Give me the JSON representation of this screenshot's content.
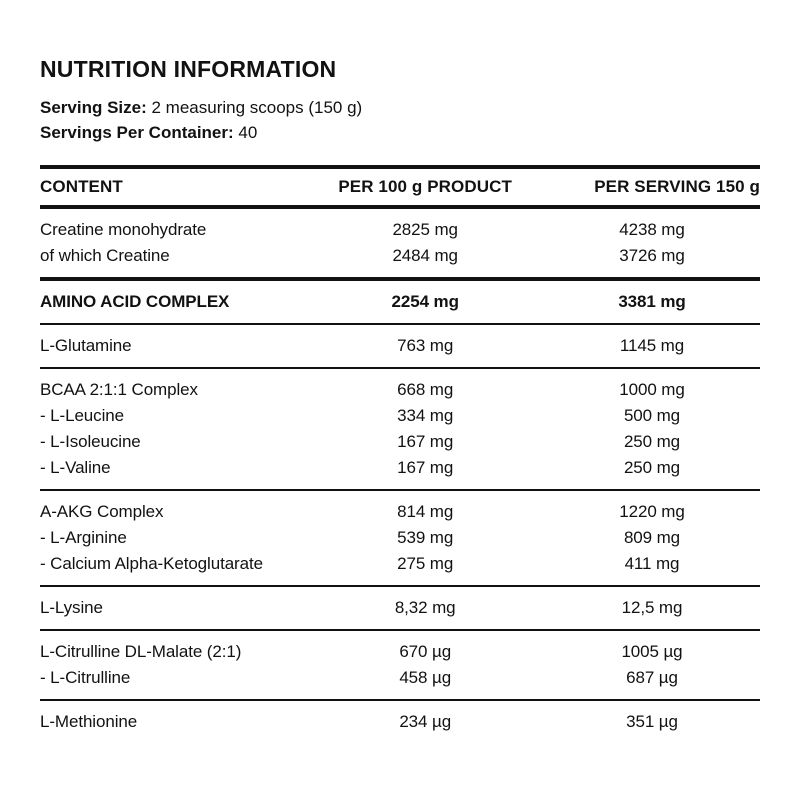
{
  "title": "NUTRITION INFORMATION",
  "serving": {
    "size_label": "Serving Size:",
    "size_value": " 2 measuring scoops (150 g)",
    "container_label": "Servings Per Container:",
    "container_value": " 40"
  },
  "table": {
    "headers": [
      "CONTENT",
      "PER 100 g PRODUCT",
      "PER SERVING 150 g"
    ],
    "groups": [
      {
        "divider_after": "thick",
        "rows": [
          [
            "Creatine monohydrate",
            "2825 mg",
            "4238 mg"
          ],
          [
            "of which Creatine",
            "2484 mg",
            "3726 mg"
          ]
        ]
      },
      {
        "bold": true,
        "divider_after": "thin",
        "rows": [
          [
            "AMINO ACID COMPLEX",
            "2254 mg",
            "3381 mg"
          ]
        ]
      },
      {
        "divider_after": "thin",
        "rows": [
          [
            "L-Glutamine",
            "763 mg",
            "1145 mg"
          ]
        ]
      },
      {
        "divider_after": "thin",
        "rows": [
          [
            "BCAA 2:1:1 Complex",
            "668 mg",
            "1000 mg"
          ],
          [
            "- L-Leucine",
            "334 mg",
            "500 mg"
          ],
          [
            "- L-Isoleucine",
            "167 mg",
            "250 mg"
          ],
          [
            "- L-Valine",
            "167 mg",
            "250 mg"
          ]
        ]
      },
      {
        "divider_after": "thin",
        "rows": [
          [
            "A-AKG Complex",
            "814 mg",
            "1220 mg"
          ],
          [
            "- L-Arginine",
            "539 mg",
            "809 mg"
          ],
          [
            "- Calcium Alpha-Ketoglutarate",
            "275 mg",
            "411 mg"
          ]
        ]
      },
      {
        "divider_after": "thin",
        "rows": [
          [
            "L-Lysine",
            "8,32 mg",
            "12,5 mg"
          ]
        ]
      },
      {
        "divider_after": "thin",
        "rows": [
          [
            "L-Citrulline DL-Malate (2:1)",
            "670 µg",
            "1005 µg"
          ],
          [
            "- L-Citrulline",
            "458 µg",
            "687 µg"
          ]
        ]
      },
      {
        "divider_after": "none",
        "rows": [
          [
            "L-Methionine",
            "234 µg",
            "351 µg"
          ]
        ]
      }
    ]
  }
}
